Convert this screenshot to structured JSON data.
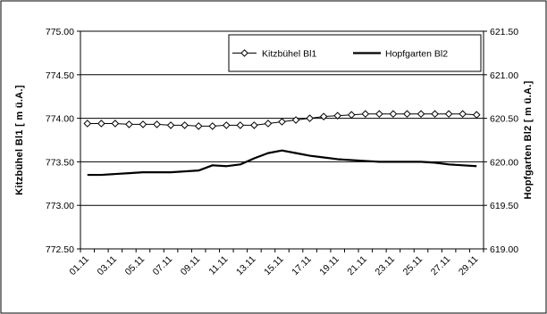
{
  "chart_data": {
    "type": "line",
    "x": [
      "01.11",
      "02.11",
      "03.11",
      "04.11",
      "05.11",
      "06.11",
      "07.11",
      "08.11",
      "09.11",
      "10.11",
      "11.11",
      "12.11",
      "13.11",
      "14.11",
      "15.11",
      "16.11",
      "17.11",
      "18.11",
      "19.11",
      "20.11",
      "21.11",
      "22.11",
      "23.11",
      "24.11",
      "25.11",
      "26.11",
      "27.11",
      "28.11",
      "29.11"
    ],
    "x_tick_labels": [
      "01.11",
      "03.11",
      "05.11",
      "07.11",
      "09.11",
      "11.11",
      "13.11",
      "15.11",
      "17.11",
      "19.11",
      "21.11",
      "23.11",
      "25.11",
      "27.11",
      "29.11"
    ],
    "ylabel_left": "Kitzbühel Bl1  [ m ü.A.]",
    "ylabel_right": "Hopfgarten Bl2  [ m ü.A.]",
    "ylim_left": [
      772.5,
      775.0
    ],
    "ylim_right": [
      619.0,
      621.5
    ],
    "y_tick_labels_left": [
      "775.00",
      "774.50",
      "774.00",
      "773.50",
      "773.00",
      "772.50"
    ],
    "y_tick_labels_right": [
      "621.50",
      "621.00",
      "620.50",
      "620.00",
      "619.50",
      "619.00"
    ],
    "grid": true,
    "legend_position": "top-right",
    "series": [
      {
        "name": "Kitzbühel Bl1",
        "axis": "left",
        "marker": "diamond",
        "color": "#000000",
        "values": [
          773.94,
          773.94,
          773.94,
          773.93,
          773.93,
          773.93,
          773.92,
          773.92,
          773.91,
          773.91,
          773.92,
          773.92,
          773.92,
          773.94,
          773.96,
          773.98,
          774.0,
          774.02,
          774.03,
          774.04,
          774.05,
          774.05,
          774.05,
          774.05,
          774.05,
          774.05,
          774.05,
          774.05,
          774.04
        ]
      },
      {
        "name": "Hopfgarten Bl2",
        "axis": "right",
        "marker": "none",
        "color": "#000000",
        "values": [
          619.85,
          619.85,
          619.86,
          619.87,
          619.88,
          619.88,
          619.88,
          619.89,
          619.9,
          619.96,
          619.95,
          619.97,
          620.04,
          620.1,
          620.13,
          620.1,
          620.07,
          620.05,
          620.03,
          620.02,
          620.01,
          620.0,
          620.0,
          620.0,
          620.0,
          619.99,
          619.97,
          619.96,
          619.95
        ]
      }
    ]
  }
}
